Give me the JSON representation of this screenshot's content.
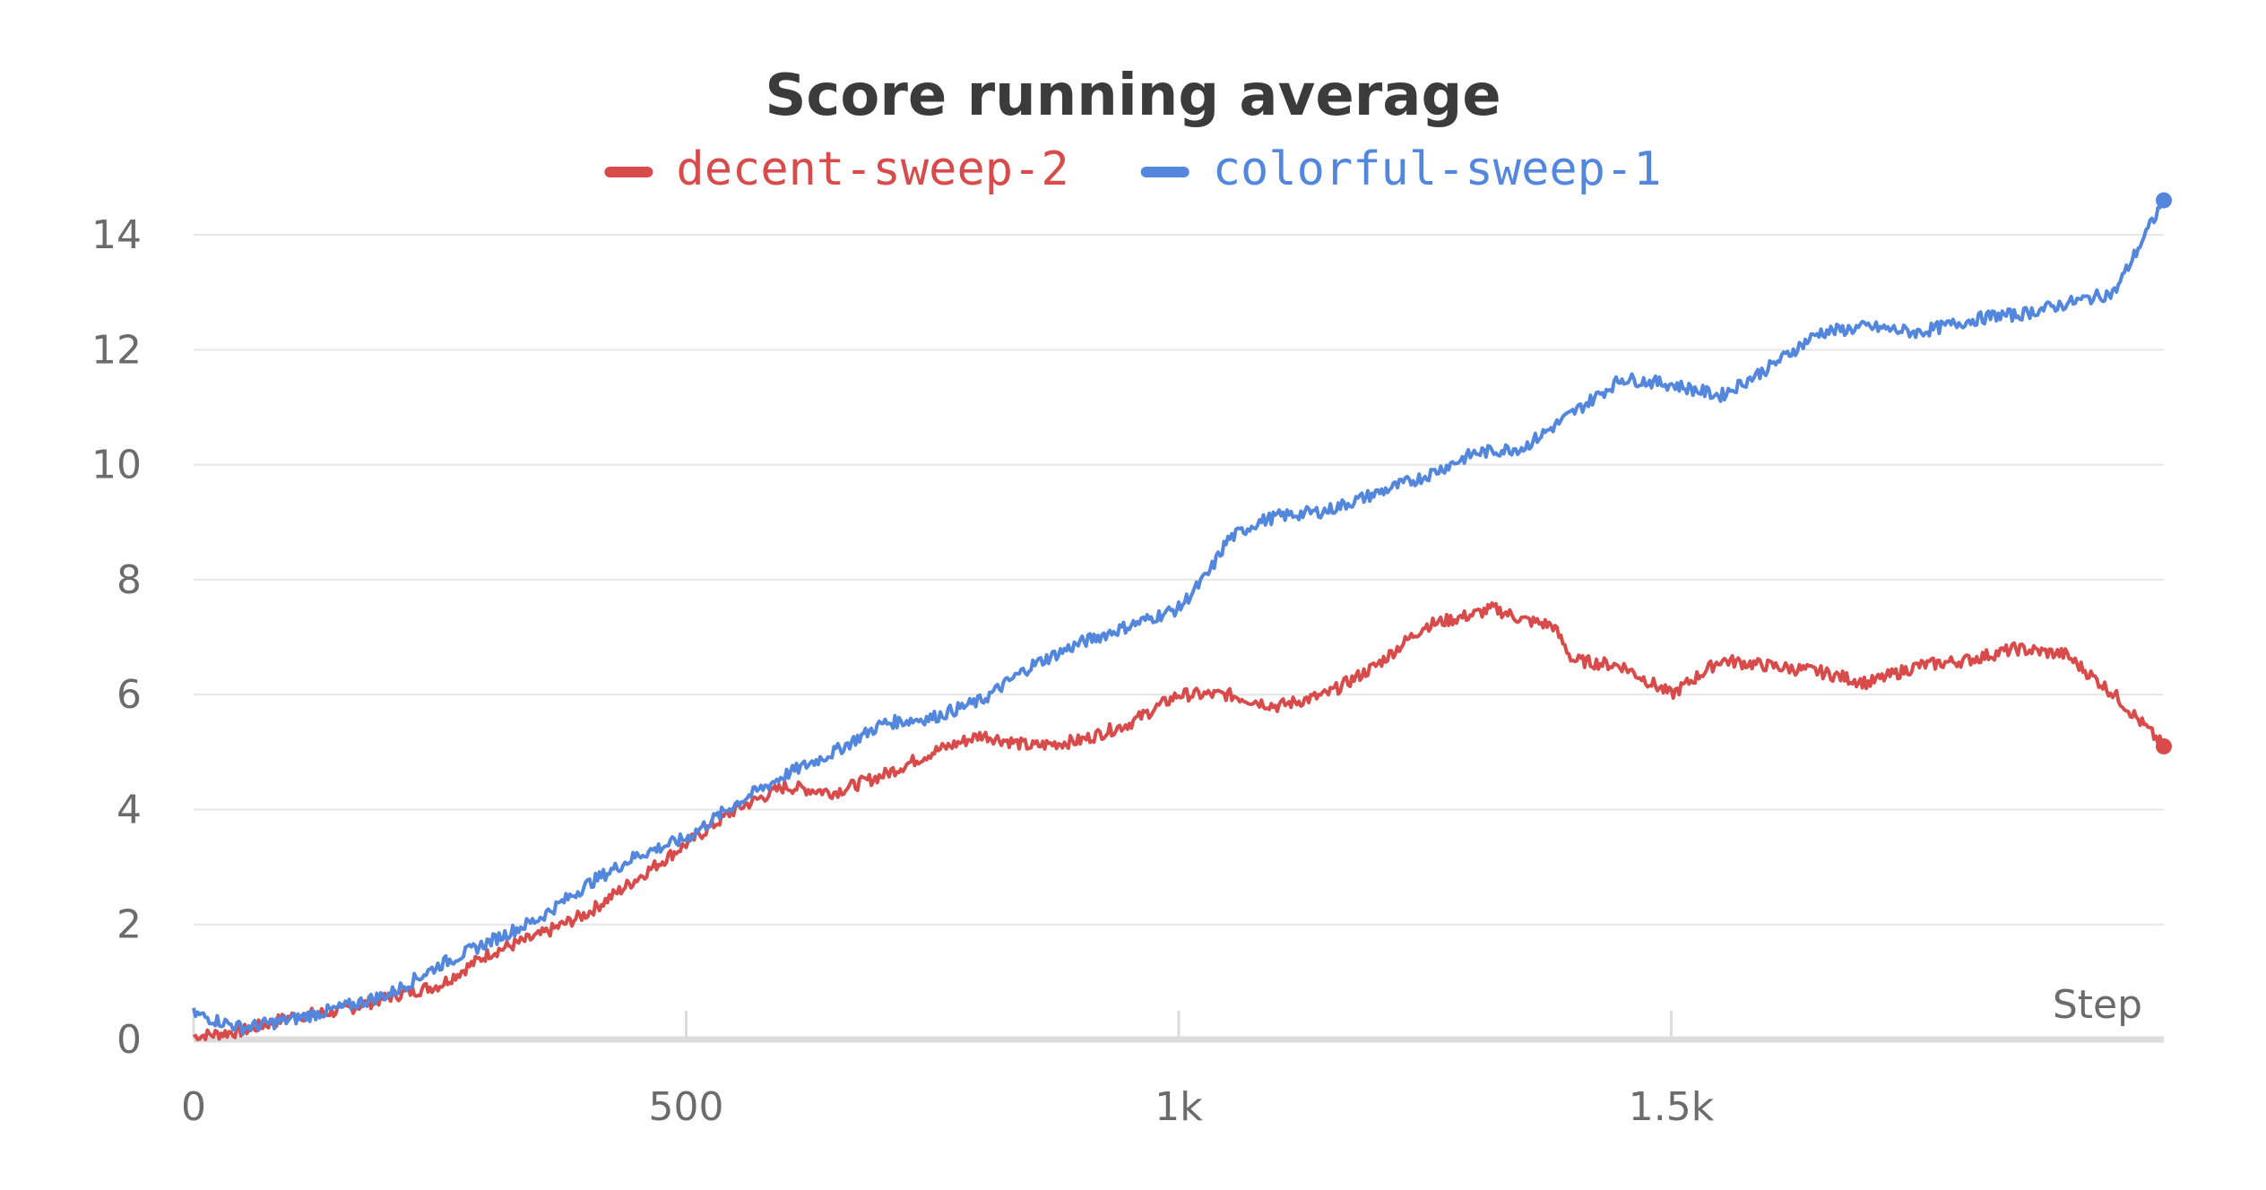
{
  "chart_data": {
    "type": "line",
    "title": "Score running average",
    "xlabel": "Step",
    "ylabel": "",
    "xlim": [
      0,
      2000
    ],
    "ylim": [
      0,
      14.5
    ],
    "x_ticks": [
      0,
      500,
      1000,
      1500
    ],
    "x_tick_labels": [
      "0",
      "500",
      "1k",
      "1.5k"
    ],
    "y_ticks": [
      0,
      2,
      4,
      6,
      8,
      10,
      12,
      14
    ],
    "y_tick_labels": [
      "0",
      "2",
      "4",
      "6",
      "8",
      "10",
      "12",
      "14"
    ],
    "grid": "horizontal",
    "legend_position": "top-center",
    "series": [
      {
        "name": "decent-sweep-2",
        "color": "#d94b4b",
        "x": [
          0,
          50,
          100,
          150,
          200,
          250,
          300,
          350,
          400,
          450,
          500,
          550,
          600,
          650,
          700,
          750,
          800,
          850,
          900,
          950,
          1000,
          1050,
          1100,
          1150,
          1200,
          1250,
          1300,
          1320,
          1350,
          1380,
          1400,
          1450,
          1500,
          1550,
          1600,
          1650,
          1700,
          1750,
          1800,
          1850,
          1900,
          1950,
          2000
        ],
        "y": [
          0.05,
          0.15,
          0.4,
          0.5,
          0.75,
          0.95,
          1.5,
          1.8,
          2.2,
          2.8,
          3.4,
          4.0,
          4.4,
          4.3,
          4.6,
          5.0,
          5.3,
          5.1,
          5.2,
          5.5,
          6.0,
          6.0,
          5.8,
          6.0,
          6.5,
          7.2,
          7.4,
          7.5,
          7.3,
          7.2,
          6.6,
          6.5,
          6.0,
          6.6,
          6.5,
          6.4,
          6.2,
          6.5,
          6.6,
          6.8,
          6.7,
          6.0,
          5.1
        ]
      },
      {
        "name": "colorful-sweep-1",
        "color": "#5387dd",
        "x": [
          0,
          50,
          100,
          150,
          200,
          250,
          300,
          350,
          400,
          450,
          500,
          550,
          600,
          650,
          700,
          750,
          800,
          850,
          900,
          950,
          1000,
          1030,
          1050,
          1080,
          1100,
          1150,
          1200,
          1250,
          1300,
          1350,
          1400,
          1450,
          1500,
          1550,
          1600,
          1650,
          1700,
          1750,
          1800,
          1830,
          1850,
          1900,
          1950,
          2000
        ],
        "y": [
          0.45,
          0.2,
          0.35,
          0.55,
          0.8,
          1.3,
          1.7,
          2.1,
          2.7,
          3.2,
          3.5,
          4.1,
          4.6,
          5.0,
          5.5,
          5.6,
          5.9,
          6.5,
          6.9,
          7.2,
          7.5,
          8.1,
          8.7,
          9.0,
          9.1,
          9.2,
          9.5,
          9.8,
          10.2,
          10.3,
          10.9,
          11.5,
          11.4,
          11.2,
          11.7,
          12.3,
          12.4,
          12.3,
          12.5,
          12.6,
          12.6,
          12.8,
          13.0,
          14.6
        ]
      }
    ]
  }
}
